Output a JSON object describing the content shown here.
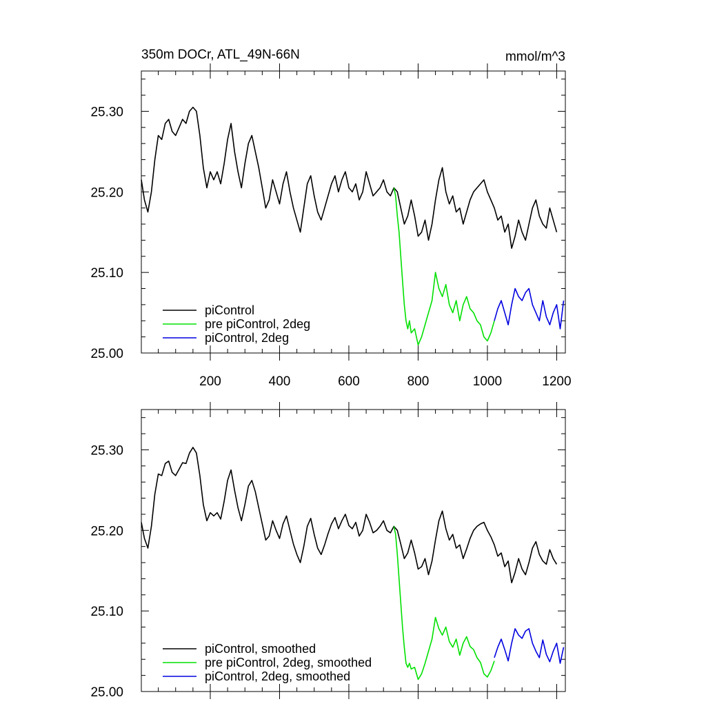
{
  "figure": {
    "title": "350m DOCr, ATL_49N-66N",
    "units": "mmol/m^3"
  },
  "colors": {
    "piControl": "#000000",
    "pre_piControl_2deg": "#00e000",
    "piControl_2deg": "#0000e0"
  },
  "chart_data": [
    {
      "type": "line",
      "title": "350m DOCr, ATL_49N-66N",
      "units": "mmol/m^3",
      "xlim": [
        1,
        1225
      ],
      "ylim": [
        25.0,
        25.35
      ],
      "x_ticks": [
        200,
        400,
        600,
        800,
        1000,
        1200
      ],
      "x_tick_labels": [
        "200",
        "400",
        "600",
        "800",
        "1000",
        "1200"
      ],
      "y_ticks": [
        25.0,
        25.1,
        25.2,
        25.3
      ],
      "y_tick_labels": [
        "25.00",
        "25.10",
        "25.20",
        "25.30"
      ],
      "legend": "bottom-left",
      "series": [
        {
          "name": "piControl",
          "color": "#000000",
          "x": [
            1,
            10,
            20,
            30,
            40,
            50,
            60,
            70,
            80,
            90,
            100,
            110,
            120,
            130,
            140,
            150,
            160,
            170,
            180,
            190,
            200,
            210,
            220,
            230,
            240,
            250,
            260,
            270,
            280,
            290,
            300,
            310,
            320,
            330,
            340,
            350,
            360,
            370,
            380,
            390,
            400,
            410,
            420,
            430,
            440,
            450,
            460,
            470,
            480,
            490,
            500,
            510,
            520,
            530,
            540,
            550,
            560,
            570,
            580,
            590,
            600,
            610,
            620,
            630,
            640,
            650,
            660,
            670,
            680,
            690,
            700,
            710,
            720,
            730,
            740,
            750,
            760,
            770,
            780,
            790,
            800,
            810,
            820,
            830,
            840,
            850,
            860,
            870,
            880,
            890,
            900,
            910,
            920,
            930,
            940,
            950,
            960,
            970,
            980,
            990,
            1000,
            1010,
            1020,
            1030,
            1040,
            1050,
            1060,
            1070,
            1080,
            1090,
            1100,
            1110,
            1120,
            1130,
            1140,
            1150,
            1160,
            1170,
            1180,
            1190,
            1200
          ],
          "y": [
            25.215,
            25.19,
            25.175,
            25.2,
            25.24,
            25.27,
            25.265,
            25.285,
            25.29,
            25.275,
            25.27,
            25.28,
            25.29,
            25.285,
            25.3,
            25.305,
            25.3,
            25.27,
            25.23,
            25.205,
            25.225,
            25.215,
            25.225,
            25.21,
            25.235,
            25.265,
            25.285,
            25.25,
            25.225,
            25.205,
            25.235,
            25.26,
            25.27,
            25.25,
            25.23,
            25.205,
            25.18,
            25.19,
            25.215,
            25.2,
            25.185,
            25.21,
            25.225,
            25.2,
            25.18,
            25.165,
            25.15,
            25.18,
            25.21,
            25.22,
            25.195,
            25.175,
            25.165,
            25.18,
            25.195,
            25.21,
            25.22,
            25.2,
            25.215,
            25.225,
            25.205,
            25.2,
            25.21,
            25.19,
            25.2,
            25.225,
            25.21,
            25.195,
            25.2,
            25.205,
            25.215,
            25.2,
            25.195,
            25.205,
            25.2,
            25.18,
            25.16,
            25.17,
            25.19,
            25.17,
            25.145,
            25.15,
            25.165,
            25.14,
            25.16,
            25.19,
            25.215,
            25.23,
            25.2,
            25.185,
            25.195,
            25.175,
            25.18,
            25.16,
            25.175,
            25.19,
            25.2,
            25.205,
            25.21,
            25.215,
            25.2,
            25.19,
            25.18,
            25.165,
            25.17,
            25.15,
            25.16,
            25.13,
            25.145,
            25.165,
            25.15,
            25.14,
            25.16,
            25.18,
            25.19,
            25.17,
            25.16,
            25.155,
            25.18,
            25.165,
            25.15
          ]
        },
        {
          "name": "pre piControl, 2deg",
          "color": "#00e000",
          "x": [
            730,
            735,
            740,
            745,
            750,
            755,
            760,
            765,
            770,
            775,
            780,
            790,
            800,
            810,
            820,
            830,
            840,
            850,
            860,
            870,
            880,
            890,
            900,
            910,
            920,
            930,
            940,
            950,
            960,
            970,
            980,
            990,
            1000,
            1010,
            1020
          ],
          "y": [
            25.205,
            25.195,
            25.17,
            25.15,
            25.12,
            25.09,
            25.06,
            25.04,
            25.03,
            25.04,
            25.025,
            25.03,
            25.01,
            25.02,
            25.035,
            25.05,
            25.065,
            25.1,
            25.08,
            25.07,
            25.085,
            25.06,
            25.05,
            25.065,
            25.04,
            25.06,
            25.07,
            25.055,
            25.05,
            25.04,
            25.035,
            25.02,
            25.015,
            25.025,
            25.04
          ]
        },
        {
          "name": "piControl, 2deg",
          "color": "#0000e0",
          "x": [
            1020,
            1030,
            1040,
            1050,
            1060,
            1070,
            1080,
            1090,
            1100,
            1110,
            1120,
            1130,
            1140,
            1150,
            1160,
            1170,
            1180,
            1190,
            1200,
            1210,
            1220
          ],
          "y": [
            25.04,
            25.055,
            25.065,
            25.05,
            25.035,
            25.06,
            25.08,
            25.07,
            25.065,
            25.075,
            25.08,
            25.06,
            25.05,
            25.04,
            25.065,
            25.045,
            25.035,
            25.05,
            25.06,
            25.03,
            25.065
          ]
        }
      ]
    },
    {
      "type": "line",
      "xlim": [
        1,
        1225
      ],
      "ylim": [
        25.0,
        25.35
      ],
      "y_ticks": [
        25.0,
        25.1,
        25.2,
        25.3
      ],
      "y_tick_labels": [
        "25.00",
        "25.10",
        "25.20",
        "25.30"
      ],
      "legend": "bottom-left",
      "series": [
        {
          "name": "piControl, smoothed",
          "color": "#000000",
          "x": [
            1,
            10,
            20,
            30,
            40,
            50,
            60,
            70,
            80,
            90,
            100,
            110,
            120,
            130,
            140,
            150,
            160,
            170,
            180,
            190,
            200,
            210,
            220,
            230,
            240,
            250,
            260,
            270,
            280,
            290,
            300,
            310,
            320,
            330,
            340,
            350,
            360,
            370,
            380,
            390,
            400,
            410,
            420,
            430,
            440,
            450,
            460,
            470,
            480,
            490,
            500,
            510,
            520,
            530,
            540,
            550,
            560,
            570,
            580,
            590,
            600,
            610,
            620,
            630,
            640,
            650,
            660,
            670,
            680,
            690,
            700,
            710,
            720,
            730,
            740,
            750,
            760,
            770,
            780,
            790,
            800,
            810,
            820,
            830,
            840,
            850,
            860,
            870,
            880,
            890,
            900,
            910,
            920,
            930,
            940,
            950,
            960,
            970,
            980,
            990,
            1000,
            1010,
            1020,
            1030,
            1040,
            1050,
            1060,
            1070,
            1080,
            1090,
            1100,
            1110,
            1120,
            1130,
            1140,
            1150,
            1160,
            1170,
            1180,
            1190,
            1200
          ],
          "y": [
            25.21,
            25.19,
            25.178,
            25.205,
            25.245,
            25.27,
            25.268,
            25.283,
            25.286,
            25.272,
            25.268,
            25.276,
            25.284,
            25.283,
            25.296,
            25.303,
            25.296,
            25.268,
            25.232,
            25.212,
            25.222,
            25.218,
            25.222,
            25.214,
            25.236,
            25.262,
            25.275,
            25.25,
            25.228,
            25.212,
            25.232,
            25.255,
            25.262,
            25.248,
            25.228,
            25.208,
            25.188,
            25.193,
            25.212,
            25.2,
            25.19,
            25.208,
            25.218,
            25.2,
            25.183,
            25.17,
            25.16,
            25.18,
            25.205,
            25.215,
            25.195,
            25.178,
            25.17,
            25.182,
            25.196,
            25.208,
            25.216,
            25.202,
            25.212,
            25.22,
            25.206,
            25.202,
            25.21,
            25.193,
            25.2,
            25.22,
            25.21,
            25.197,
            25.2,
            25.205,
            25.212,
            25.2,
            25.197,
            25.205,
            25.2,
            25.183,
            25.165,
            25.172,
            25.188,
            25.172,
            25.152,
            25.155,
            25.165,
            25.145,
            25.162,
            25.188,
            25.212,
            25.224,
            25.202,
            25.188,
            25.195,
            25.178,
            25.182,
            25.165,
            25.177,
            25.19,
            25.2,
            25.205,
            25.208,
            25.21,
            25.2,
            25.192,
            25.182,
            25.168,
            25.172,
            25.155,
            25.162,
            25.135,
            25.148,
            25.165,
            25.152,
            25.145,
            25.16,
            25.178,
            25.186,
            25.17,
            25.162,
            25.158,
            25.176,
            25.165,
            25.158
          ]
        },
        {
          "name": "pre piControl, 2deg, smoothed",
          "color": "#00e000",
          "x": [
            730,
            735,
            740,
            745,
            750,
            755,
            760,
            765,
            770,
            775,
            780,
            790,
            800,
            810,
            820,
            830,
            840,
            850,
            860,
            870,
            880,
            890,
            900,
            910,
            920,
            930,
            940,
            950,
            960,
            970,
            980,
            990,
            1000,
            1010,
            1020
          ],
          "y": [
            25.205,
            25.195,
            25.17,
            25.14,
            25.11,
            25.08,
            25.055,
            25.035,
            25.03,
            25.035,
            25.028,
            25.03,
            25.015,
            25.022,
            25.035,
            25.05,
            25.065,
            25.092,
            25.078,
            25.07,
            25.08,
            25.062,
            25.055,
            25.065,
            25.045,
            25.06,
            25.068,
            25.056,
            25.052,
            25.042,
            25.036,
            25.022,
            25.018,
            25.026,
            25.038
          ]
        },
        {
          "name": "piControl, 2deg, smoothed",
          "color": "#0000e0",
          "x": [
            1020,
            1030,
            1040,
            1050,
            1060,
            1070,
            1080,
            1090,
            1100,
            1110,
            1120,
            1130,
            1140,
            1150,
            1160,
            1170,
            1180,
            1190,
            1200,
            1210,
            1220
          ],
          "y": [
            25.042,
            25.055,
            25.065,
            25.052,
            25.038,
            25.06,
            25.078,
            25.07,
            25.066,
            25.075,
            25.078,
            25.06,
            25.05,
            25.042,
            25.064,
            25.046,
            25.037,
            25.05,
            25.06,
            25.035,
            25.055
          ]
        }
      ]
    }
  ]
}
